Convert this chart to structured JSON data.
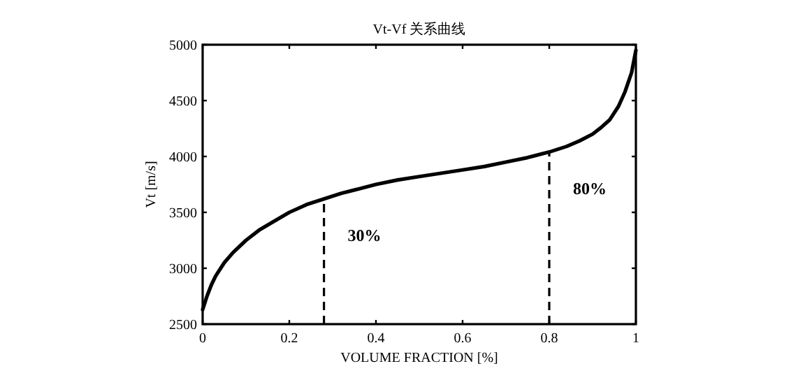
{
  "chart_data": {
    "type": "line",
    "title": "Vt-Vf 关系曲线",
    "xlabel": "VOLUME FRACTION [%]",
    "ylabel": "Vt [m/s]",
    "xlim": [
      0,
      1
    ],
    "ylim": [
      2500,
      5000
    ],
    "xticks": [
      0,
      0.2,
      0.4,
      0.6,
      0.8,
      1
    ],
    "yticks": [
      2500,
      3000,
      3500,
      4000,
      4500,
      5000
    ],
    "series": [
      {
        "color": "#000000",
        "line_style": "solid",
        "x": [
          0,
          0.01,
          0.02,
          0.03,
          0.05,
          0.07,
          0.1,
          0.13,
          0.16,
          0.2,
          0.24,
          0.28,
          0.32,
          0.36,
          0.4,
          0.45,
          0.5,
          0.55,
          0.6,
          0.65,
          0.7,
          0.75,
          0.8,
          0.84,
          0.87,
          0.9,
          0.92,
          0.94,
          0.96,
          0.975,
          0.99,
          1
        ],
        "values": [
          2630,
          2750,
          2850,
          2930,
          3050,
          3140,
          3250,
          3340,
          3410,
          3500,
          3570,
          3620,
          3670,
          3710,
          3750,
          3790,
          3820,
          3850,
          3880,
          3910,
          3950,
          3990,
          4040,
          4090,
          4140,
          4200,
          4260,
          4330,
          4450,
          4580,
          4750,
          4950
        ]
      },
      {
        "color": "#000000",
        "line_style": "dashed",
        "x": [
          0.28,
          0.28
        ],
        "values": [
          2500,
          3620
        ]
      },
      {
        "color": "#000000",
        "line_style": "dashed",
        "x": [
          0.8,
          0.8
        ],
        "values": [
          2500,
          4040
        ]
      }
    ],
    "annotations": [
      "30%",
      "80%"
    ]
  }
}
